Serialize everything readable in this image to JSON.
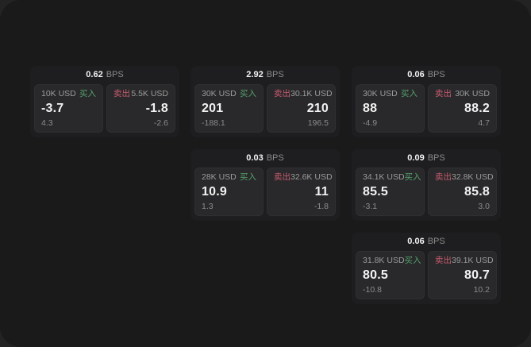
{
  "colors": {
    "outer_bg": "#232323",
    "surface_bg": "#1a1a1b",
    "card_bg": "#1e1e20",
    "panel_bg": "#29292b",
    "buy": "#55a06b",
    "sell": "#c75a6d",
    "text_primary": "#f2f2f2",
    "text_label": "#9b9b9b",
    "text_muted": "#8b8b8b"
  },
  "cards": [
    {
      "bps_value": "0.62",
      "bps_unit": "BPS",
      "buy": {
        "amount": "10K USD",
        "label": "买入",
        "value": "-3.7",
        "sub": "4.3"
      },
      "sell": {
        "label": "卖出",
        "amount": "5.5K USD",
        "value": "-1.8",
        "sub": "-2.6"
      }
    },
    {
      "bps_value": "2.92",
      "bps_unit": "BPS",
      "buy": {
        "amount": "30K USD",
        "label": "买入",
        "value": "201",
        "sub": "-188.1"
      },
      "sell": {
        "label": "卖出",
        "amount": "30.1K USD",
        "value": "210",
        "sub": "196.5"
      }
    },
    {
      "bps_value": "0.06",
      "bps_unit": "BPS",
      "buy": {
        "amount": "30K USD",
        "label": "买入",
        "value": "88",
        "sub": "-4.9"
      },
      "sell": {
        "label": "卖出",
        "amount": "30K USD",
        "value": "88.2",
        "sub": "4.7"
      }
    },
    {
      "bps_value": "0.03",
      "bps_unit": "BPS",
      "buy": {
        "amount": "28K USD",
        "label": "买入",
        "value": "10.9",
        "sub": "1.3"
      },
      "sell": {
        "label": "卖出",
        "amount": "32.6K USD",
        "value": "11",
        "sub": "-1.8"
      }
    },
    {
      "bps_value": "0.09",
      "bps_unit": "BPS",
      "buy": {
        "amount": "34.1K USD",
        "label": "买入",
        "value": "85.5",
        "sub": "-3.1"
      },
      "sell": {
        "label": "卖出",
        "amount": "32.8K USD",
        "value": "85.8",
        "sub": "3.0"
      }
    },
    {
      "bps_value": "0.06",
      "bps_unit": "BPS",
      "buy": {
        "amount": "31.8K USD",
        "label": "买入",
        "value": "80.5",
        "sub": "-10.8"
      },
      "sell": {
        "label": "卖出",
        "amount": "39.1K USD",
        "value": "80.7",
        "sub": "10.2"
      }
    }
  ]
}
